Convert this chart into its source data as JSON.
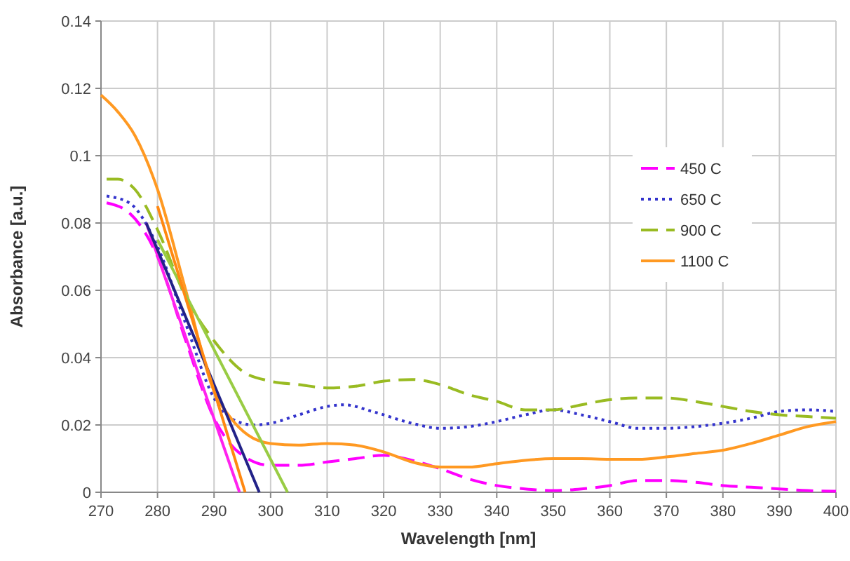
{
  "chart_data": {
    "type": "line",
    "xlabel": "Wavelength [nm]",
    "ylabel": "Absorbance [a.u.]",
    "xlim": [
      270,
      400
    ],
    "ylim": [
      0,
      0.14
    ],
    "xticks": [
      270,
      280,
      290,
      300,
      310,
      320,
      330,
      340,
      350,
      360,
      370,
      380,
      390,
      400
    ],
    "yticks": [
      {
        "value": 0,
        "label": "0"
      },
      {
        "value": 0.02,
        "label": "0.02"
      },
      {
        "value": 0.04,
        "label": "0.04"
      },
      {
        "value": 0.06,
        "label": "0.06"
      },
      {
        "value": 0.08,
        "label": "0.08"
      },
      {
        "value": 0.1,
        "label": "0.1"
      },
      {
        "value": 0.12,
        "label": "0.12"
      },
      {
        "value": 0.14,
        "label": "0.14"
      }
    ],
    "grid": true,
    "legend": "right",
    "marker": "none",
    "series": [
      {
        "name": "450 C",
        "color": "#ff00ff",
        "line_style": "dashed",
        "x": [
          271,
          275,
          280,
          285,
          290,
          295,
          300,
          305,
          310,
          315,
          320,
          325,
          330,
          335,
          340,
          345,
          350,
          355,
          360,
          365,
          370,
          375,
          380,
          385,
          390,
          395,
          400
        ],
        "values": [
          0.086,
          0.083,
          0.07,
          0.045,
          0.022,
          0.011,
          0.008,
          0.008,
          0.009,
          0.01,
          0.011,
          0.0095,
          0.007,
          0.004,
          0.002,
          0.001,
          0.0005,
          0.001,
          0.002,
          0.0035,
          0.0035,
          0.003,
          0.002,
          0.0015,
          0.001,
          0.0005,
          0.0003
        ]
      },
      {
        "name": "650 C",
        "color": "#3333cc",
        "line_style": "dotted",
        "x": [
          271,
          275,
          280,
          285,
          290,
          293,
          297,
          300,
          305,
          310,
          313,
          318,
          325,
          330,
          335,
          340,
          345,
          350,
          355,
          360,
          365,
          370,
          375,
          380,
          385,
          390,
          395,
          400
        ],
        "values": [
          0.088,
          0.086,
          0.073,
          0.05,
          0.028,
          0.022,
          0.02,
          0.0205,
          0.023,
          0.0255,
          0.026,
          0.024,
          0.0205,
          0.019,
          0.0195,
          0.021,
          0.023,
          0.0245,
          0.023,
          0.021,
          0.019,
          0.019,
          0.0195,
          0.0205,
          0.022,
          0.024,
          0.0245,
          0.024
        ]
      },
      {
        "name": "900 C",
        "color": "#99bb22",
        "line_style": "dashed",
        "x": [
          271,
          273,
          276,
          280,
          285,
          290,
          295,
          300,
          305,
          310,
          315,
          320,
          325,
          330,
          335,
          340,
          345,
          350,
          355,
          360,
          365,
          370,
          375,
          380,
          385,
          390,
          395,
          400
        ],
        "values": [
          0.093,
          0.093,
          0.09,
          0.078,
          0.058,
          0.045,
          0.036,
          0.033,
          0.032,
          0.031,
          0.0315,
          0.033,
          0.0335,
          0.032,
          0.029,
          0.027,
          0.0245,
          0.0245,
          0.026,
          0.0275,
          0.028,
          0.028,
          0.027,
          0.0255,
          0.024,
          0.023,
          0.0225,
          0.022
        ]
      },
      {
        "name": "1100 C",
        "color": "#ff9922",
        "line_style": "solid",
        "x": [
          270,
          273,
          276,
          280,
          285,
          290,
          293,
          296,
          300,
          305,
          310,
          315,
          320,
          325,
          330,
          335,
          340,
          345,
          350,
          355,
          360,
          365,
          370,
          375,
          380,
          385,
          390,
          395,
          400
        ],
        "values": [
          0.118,
          0.113,
          0.106,
          0.09,
          0.06,
          0.03,
          0.022,
          0.017,
          0.0145,
          0.014,
          0.0145,
          0.014,
          0.012,
          0.009,
          0.0075,
          0.0075,
          0.0085,
          0.0095,
          0.01,
          0.01,
          0.0098,
          0.0098,
          0.0105,
          0.0115,
          0.0125,
          0.0145,
          0.017,
          0.0195,
          0.021
        ]
      },
      {
        "color": "#ff22ee",
        "line_style": "solid",
        "x": [
          278,
          294.5
        ],
        "values": [
          0.08,
          0
        ]
      },
      {
        "color": "#222288",
        "line_style": "solid",
        "x": [
          278,
          298
        ],
        "values": [
          0.08,
          0
        ]
      },
      {
        "color": "#99cc44",
        "line_style": "solid",
        "x": [
          280,
          303
        ],
        "values": [
          0.075,
          0
        ]
      },
      {
        "color": "#ff8811",
        "line_style": "solid",
        "x": [
          280,
          295.5
        ],
        "values": [
          0.085,
          0
        ]
      }
    ]
  }
}
